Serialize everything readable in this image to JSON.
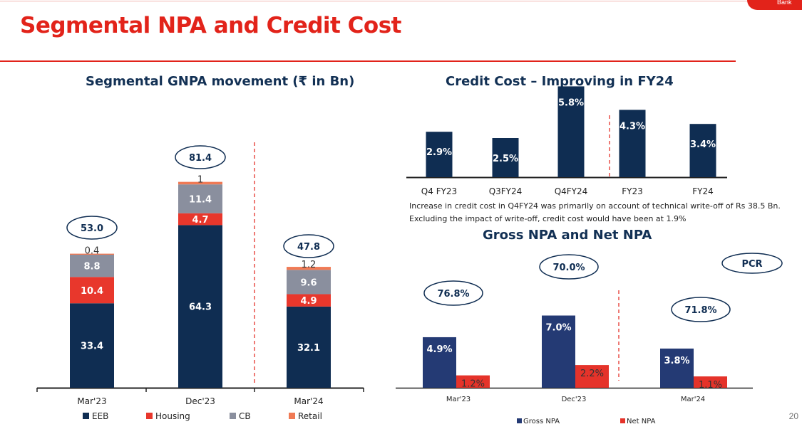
{
  "header": {
    "title": "Segmental NPA and Credit Cost",
    "logo_text": "Bank",
    "page_number": "20"
  },
  "colors": {
    "title_red": "#e2231a",
    "navy": "#0f2d52",
    "red": "#e8372c",
    "gray": "#8a8f9e",
    "orange": "#f07a55",
    "net_npa_red": "#e5332a",
    "gross_npa_navy": "#243a74"
  },
  "notes": {
    "line1": "Increase in credit cost in Q4FY24 was primarily on account of technical write-off of Rs 38.5 Bn.",
    "line2": "Excluding the impact of write-off, credit cost would have been at 1.9%"
  },
  "chart_data": [
    {
      "type": "bar",
      "stacked": true,
      "title": "Segmental GNPA movement (₹ in Bn)",
      "categories": [
        "Mar'23",
        "Dec'23",
        "Mar'24"
      ],
      "series": [
        {
          "name": "EEB",
          "values": [
            33.4,
            64.3,
            32.1
          ],
          "color": "#0f2d52",
          "label_color": "#ffffff"
        },
        {
          "name": "Housing",
          "values": [
            10.4,
            4.7,
            4.9
          ],
          "color": "#e8372c",
          "label_color": "#ffffff"
        },
        {
          "name": "CB",
          "values": [
            8.8,
            11.4,
            9.6
          ],
          "color": "#8a8f9e",
          "label_color": "#ffffff"
        },
        {
          "name": "Retail",
          "values": [
            0.4,
            1.0,
            1.2
          ],
          "color": "#f07a55",
          "label_color": "#333333"
        }
      ],
      "totals": [
        "53.0",
        "81.4",
        "47.8"
      ],
      "divider_after": 1
    },
    {
      "type": "bar",
      "title": "Credit Cost – Improving in FY24",
      "categories": [
        "Q4 FY23",
        "Q3FY24",
        "Q4FY24",
        "FY23",
        "FY24"
      ],
      "values": [
        2.9,
        2.5,
        5.8,
        4.3,
        3.4
      ],
      "labels": [
        "2.9%",
        "2.5%",
        "5.8%",
        "4.3%",
        "3.4%"
      ],
      "color": "#0f2d52",
      "divider_after": 2
    },
    {
      "type": "bar",
      "title": "Gross NPA and Net NPA",
      "categories": [
        "Mar'23",
        "Dec'23",
        "Mar'24"
      ],
      "series": [
        {
          "name": "Gross NPA",
          "values": [
            4.9,
            7.0,
            3.8
          ],
          "labels": [
            "4.9%",
            "7.0%",
            "3.8%"
          ],
          "color": "#243a74"
        },
        {
          "name": "Net NPA",
          "values": [
            1.2,
            2.2,
            1.1
          ],
          "labels": [
            "1.2%",
            "2.2%",
            "1.1%"
          ],
          "color": "#e5332a"
        }
      ],
      "pcr_label": "PCR",
      "pcr_values": [
        "76.8%",
        "70.0%",
        "71.8%"
      ],
      "divider_after": 1
    }
  ]
}
